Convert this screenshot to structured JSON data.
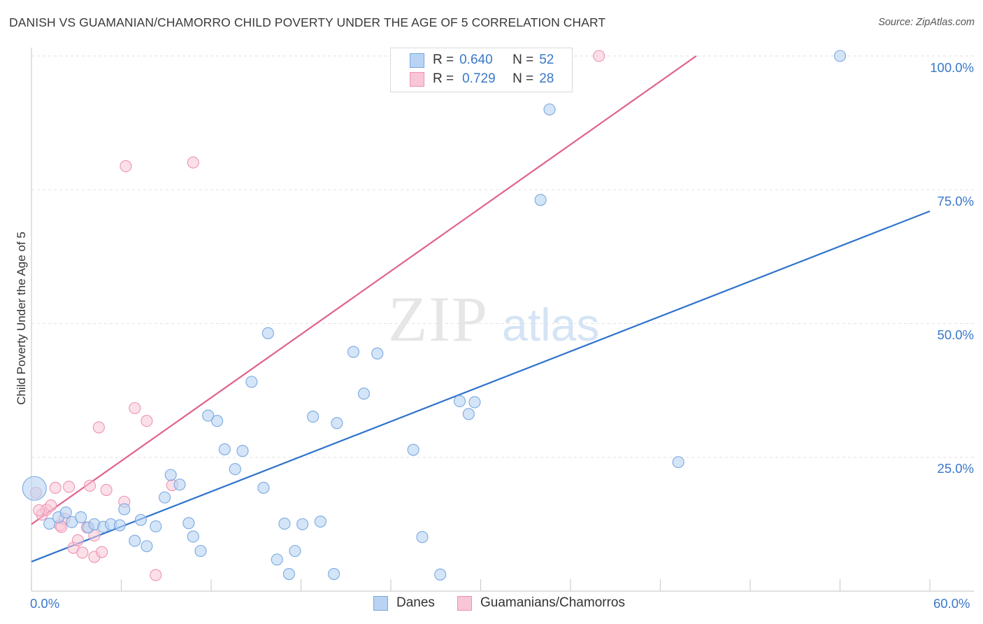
{
  "title": "DANISH VS GUAMANIAN/CHAMORRO CHILD POVERTY UNDER THE AGE OF 5 CORRELATION CHART",
  "source": "Source: ZipAtlas.com",
  "watermark": {
    "zip": "ZIP",
    "atlas": "atlas"
  },
  "legend": {
    "danes": {
      "r_label": "R =",
      "r_value": "0.640",
      "n_label": "N =",
      "n_value": "52"
    },
    "guam": {
      "r_label": "R =",
      "r_value": "0.729",
      "n_label": "N =",
      "n_value": "28"
    }
  },
  "bottom_legend": {
    "danes": "Danes",
    "guam": "Guamanians/Chamorros"
  },
  "colors": {
    "danes_fill": "#b8d3f3",
    "danes_stroke": "#7aa8e0",
    "danes_line": "#2e73cc",
    "guam_fill": "#f8c6d6",
    "guam_stroke": "#ee93b2",
    "guam_line": "#e0628c",
    "tick_text": "#3a78c9",
    "grid": "#e2e2e2"
  },
  "chart_data": {
    "type": "scatter",
    "title": "DANISH VS GUAMANIAN/CHAMORRO CHILD POVERTY UNDER THE AGE OF 5 CORRELATION CHART",
    "xlabel": "",
    "ylabel": "Child Poverty Under the Age of 5",
    "xlim": [
      0,
      60
    ],
    "ylim": [
      0,
      100
    ],
    "x_tick_labels": [
      "0.0%",
      "60.0%"
    ],
    "y_ticks": [
      25,
      50,
      75,
      100
    ],
    "y_tick_labels": [
      "25.0%",
      "50.0%",
      "75.0%",
      "100.0%"
    ],
    "grid": true,
    "legend_position": "top-center",
    "series": [
      {
        "name": "Danes",
        "r": 0.64,
        "n": 52,
        "trend": [
          [
            0,
            5.5
          ],
          [
            60,
            71
          ]
        ],
        "points": [
          [
            0.2,
            19.2
          ],
          [
            1.2,
            12.6
          ],
          [
            1.8,
            13.8
          ],
          [
            2.3,
            14.7
          ],
          [
            2.7,
            12.9
          ],
          [
            3.3,
            13.8
          ],
          [
            3.8,
            11.9
          ],
          [
            4.2,
            12.5
          ],
          [
            4.8,
            12.0
          ],
          [
            5.3,
            12.5
          ],
          [
            5.9,
            12.3
          ],
          [
            6.2,
            15.3
          ],
          [
            6.9,
            9.4
          ],
          [
            7.3,
            13.3
          ],
          [
            7.7,
            8.4
          ],
          [
            8.3,
            12.1
          ],
          [
            8.9,
            17.5
          ],
          [
            9.3,
            21.7
          ],
          [
            9.9,
            19.9
          ],
          [
            10.5,
            12.7
          ],
          [
            10.8,
            10.2
          ],
          [
            11.3,
            7.5
          ],
          [
            11.8,
            32.8
          ],
          [
            12.4,
            31.8
          ],
          [
            12.9,
            26.5
          ],
          [
            13.6,
            22.8
          ],
          [
            14.1,
            26.2
          ],
          [
            14.7,
            39.1
          ],
          [
            15.5,
            19.3
          ],
          [
            15.8,
            48.2
          ],
          [
            16.4,
            5.9
          ],
          [
            16.9,
            12.6
          ],
          [
            17.2,
            3.2
          ],
          [
            17.6,
            7.5
          ],
          [
            18.1,
            12.5
          ],
          [
            18.8,
            32.6
          ],
          [
            19.3,
            13.0
          ],
          [
            20.2,
            3.2
          ],
          [
            20.4,
            31.4
          ],
          [
            21.5,
            44.7
          ],
          [
            22.2,
            36.9
          ],
          [
            23.1,
            44.4
          ],
          [
            25.5,
            26.4
          ],
          [
            26.1,
            10.1
          ],
          [
            27.3,
            3.1
          ],
          [
            28.6,
            35.5
          ],
          [
            29.2,
            33.1
          ],
          [
            29.6,
            35.3
          ],
          [
            34.0,
            73.1
          ],
          [
            34.6,
            90.0
          ],
          [
            43.2,
            24.1
          ],
          [
            54.0,
            100
          ]
        ]
      },
      {
        "name": "Guamanians/Chamorros",
        "r": 0.729,
        "n": 28,
        "trend": [
          [
            0,
            12.5
          ],
          [
            44.4,
            100
          ]
        ],
        "points": [
          [
            0.3,
            18.4
          ],
          [
            0.7,
            14.3
          ],
          [
            1.0,
            15.2
          ],
          [
            1.3,
            16.0
          ],
          [
            1.6,
            19.3
          ],
          [
            1.9,
            12.3
          ],
          [
            2.2,
            13.5
          ],
          [
            2.5,
            19.5
          ],
          [
            2.8,
            8.1
          ],
          [
            3.1,
            9.5
          ],
          [
            3.4,
            7.2
          ],
          [
            3.7,
            11.9
          ],
          [
            3.9,
            19.7
          ],
          [
            4.2,
            10.4
          ],
          [
            4.2,
            6.4
          ],
          [
            4.5,
            30.6
          ],
          [
            4.7,
            7.3
          ],
          [
            5.0,
            18.9
          ],
          [
            6.2,
            16.7
          ],
          [
            6.3,
            79.4
          ],
          [
            6.9,
            34.2
          ],
          [
            7.7,
            31.8
          ],
          [
            8.3,
            3.0
          ],
          [
            9.4,
            19.8
          ],
          [
            10.8,
            80.1
          ],
          [
            37.9,
            100
          ],
          [
            0.5,
            15.1
          ],
          [
            2.0,
            12.0
          ]
        ]
      }
    ]
  }
}
